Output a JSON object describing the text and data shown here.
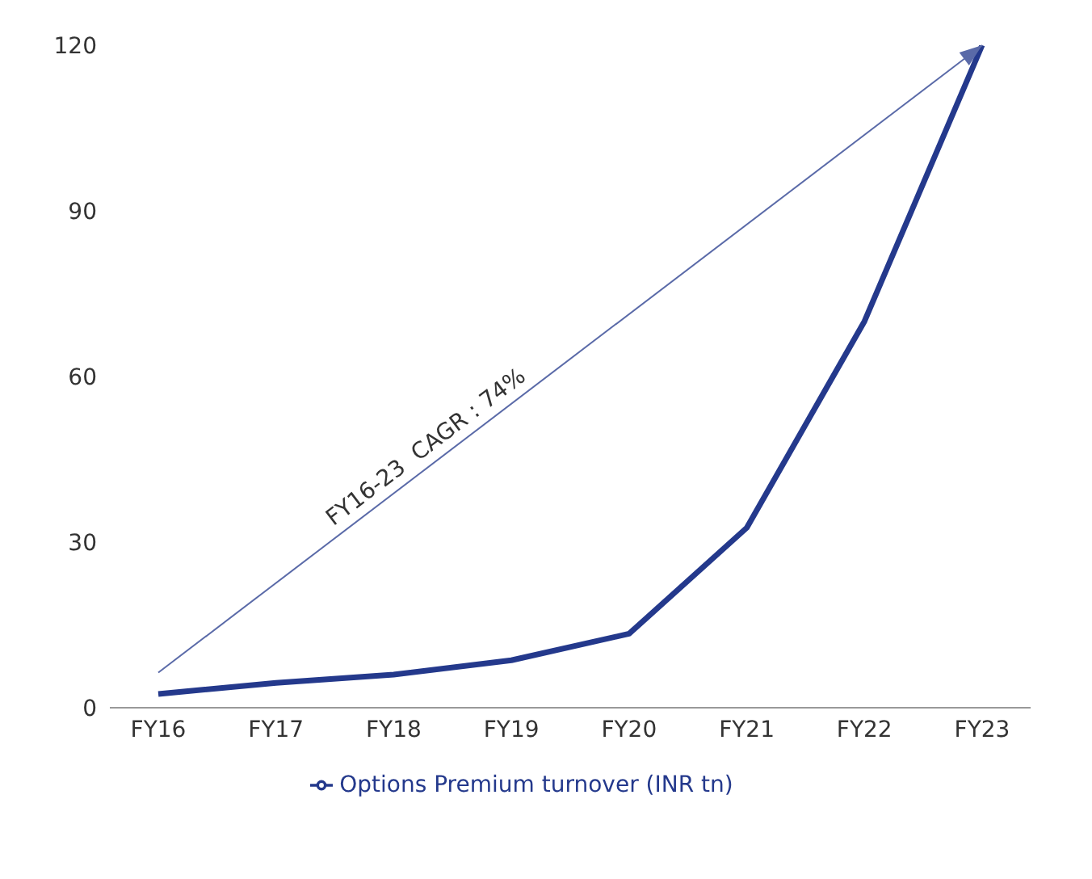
{
  "chart_data": {
    "type": "line",
    "categories": [
      "FY16",
      "FY17",
      "FY18",
      "FY19",
      "FY20",
      "FY21",
      "FY22",
      "FY23"
    ],
    "series": [
      {
        "name": "Options Premium turnover (INR tn)",
        "color": "#24398c",
        "values": [
          2.5,
          4.5,
          6,
          8.6,
          13.4,
          32.6,
          70,
          120
        ]
      }
    ],
    "ylim": [
      0,
      120
    ],
    "yticks": [
      0,
      30,
      60,
      90,
      120
    ],
    "grid": false,
    "legend": "bottom",
    "marker": "none",
    "line_style": "solid",
    "annotations": [
      "FY16-23  CAGR : 74%"
    ]
  }
}
